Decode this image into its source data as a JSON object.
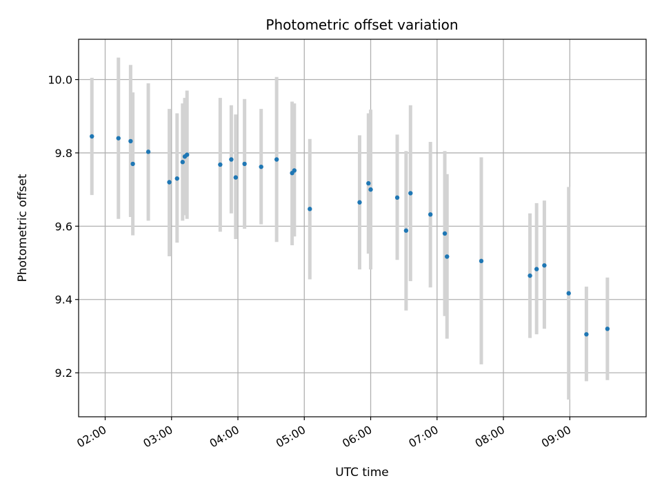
{
  "chart_data": {
    "type": "scatter",
    "title": "Photometric offset variation",
    "xlabel": "UTC time",
    "ylabel": "Photometric offset",
    "x_ticks": [
      "02:00",
      "03:00",
      "04:00",
      "05:00",
      "06:00",
      "07:00",
      "08:00",
      "09:00"
    ],
    "y_ticks": [
      "9.2",
      "9.4",
      "9.6",
      "9.8",
      "10.0"
    ],
    "xlim": [
      "01:36",
      "10:09"
    ],
    "ylim": [
      9.08,
      10.11
    ],
    "grid": true,
    "colors": {
      "point": "#1f77b4",
      "errorbar": "#d3d3d3",
      "grid": "#b0b0b0"
    },
    "points": [
      {
        "x": "01:48",
        "y": 9.845,
        "low": 9.685,
        "high": 10.005
      },
      {
        "x": "02:12",
        "y": 9.84,
        "low": 9.62,
        "high": 10.06
      },
      {
        "x": "02:23",
        "y": 9.832,
        "low": 9.625,
        "high": 10.04
      },
      {
        "x": "02:25",
        "y": 9.77,
        "low": 9.575,
        "high": 9.965
      },
      {
        "x": "02:39",
        "y": 9.803,
        "low": 9.615,
        "high": 9.99
      },
      {
        "x": "02:58",
        "y": 9.72,
        "low": 9.518,
        "high": 9.92
      },
      {
        "x": "03:05",
        "y": 9.73,
        "low": 9.555,
        "high": 9.908
      },
      {
        "x": "03:10",
        "y": 9.775,
        "low": 9.615,
        "high": 9.935
      },
      {
        "x": "03:12",
        "y": 9.79,
        "low": 9.63,
        "high": 9.95
      },
      {
        "x": "03:14",
        "y": 9.795,
        "low": 9.62,
        "high": 9.97
      },
      {
        "x": "03:44",
        "y": 9.768,
        "low": 9.585,
        "high": 9.95
      },
      {
        "x": "03:54",
        "y": 9.782,
        "low": 9.635,
        "high": 9.93
      },
      {
        "x": "03:58",
        "y": 9.733,
        "low": 9.565,
        "high": 9.905
      },
      {
        "x": "04:06",
        "y": 9.77,
        "low": 9.593,
        "high": 9.947
      },
      {
        "x": "04:21",
        "y": 9.762,
        "low": 9.605,
        "high": 9.92
      },
      {
        "x": "04:35",
        "y": 9.782,
        "low": 9.557,
        "high": 10.007
      },
      {
        "x": "04:49",
        "y": 9.745,
        "low": 9.548,
        "high": 9.94
      },
      {
        "x": "04:51",
        "y": 9.752,
        "low": 9.572,
        "high": 9.935
      },
      {
        "x": "05:05",
        "y": 9.647,
        "low": 9.455,
        "high": 9.838
      },
      {
        "x": "05:50",
        "y": 9.665,
        "low": 9.482,
        "high": 9.848
      },
      {
        "x": "05:58",
        "y": 9.717,
        "low": 9.525,
        "high": 9.908
      },
      {
        "x": "06:00",
        "y": 9.7,
        "low": 9.482,
        "high": 9.918
      },
      {
        "x": "06:24",
        "y": 9.678,
        "low": 9.508,
        "high": 9.85
      },
      {
        "x": "06:32",
        "y": 9.588,
        "low": 9.37,
        "high": 9.805
      },
      {
        "x": "06:36",
        "y": 9.69,
        "low": 9.45,
        "high": 9.93
      },
      {
        "x": "06:54",
        "y": 9.632,
        "low": 9.433,
        "high": 9.83
      },
      {
        "x": "07:07",
        "y": 9.58,
        "low": 9.355,
        "high": 9.805
      },
      {
        "x": "07:09",
        "y": 9.517,
        "low": 9.293,
        "high": 9.742
      },
      {
        "x": "07:40",
        "y": 9.505,
        "low": 9.223,
        "high": 9.788
      },
      {
        "x": "08:24",
        "y": 9.465,
        "low": 9.295,
        "high": 9.635
      },
      {
        "x": "08:30",
        "y": 9.483,
        "low": 9.305,
        "high": 9.663
      },
      {
        "x": "08:37",
        "y": 9.493,
        "low": 9.32,
        "high": 9.67
      },
      {
        "x": "08:59",
        "y": 9.417,
        "low": 9.127,
        "high": 9.707
      },
      {
        "x": "09:15",
        "y": 9.305,
        "low": 9.177,
        "high": 9.435
      },
      {
        "x": "09:34",
        "y": 9.32,
        "low": 9.18,
        "high": 9.46
      }
    ]
  }
}
